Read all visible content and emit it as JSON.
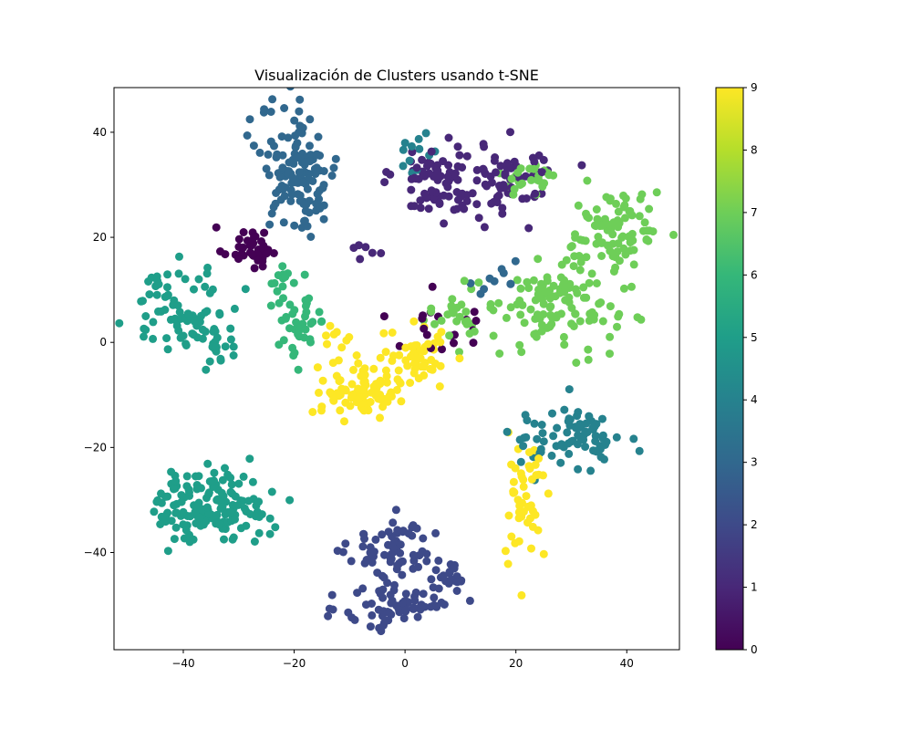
{
  "chart_data": {
    "type": "scatter",
    "title": "Visualización de Clusters usando t-SNE",
    "xlabel": "",
    "ylabel": "",
    "xlim": [
      -52.5,
      49.5
    ],
    "ylim": [
      -58.5,
      48.5
    ],
    "xticks": [
      -40,
      -20,
      0,
      20,
      40
    ],
    "yticks": [
      -40,
      -20,
      0,
      20,
      40
    ],
    "grid": false,
    "colormap": "viridis",
    "colorbar": {
      "label": "",
      "range": [
        0,
        9
      ],
      "ticks": [
        0,
        1,
        2,
        3,
        4,
        5,
        6,
        7,
        8,
        9
      ]
    },
    "palette": [
      "#440154",
      "#482878",
      "#3e4a89",
      "#31688e",
      "#26828e",
      "#1f9e89",
      "#35b779",
      "#6ece58",
      "#b5de2b",
      "#fde725"
    ],
    "clusters": [
      {
        "label": 0,
        "center": [
          -28,
          18
        ],
        "spread": [
          2.5,
          2.0
        ],
        "count": 40
      },
      {
        "label": 0,
        "center": [
          5,
          3
        ],
        "spread": [
          4.0,
          3.0
        ],
        "count": 20
      },
      {
        "label": 1,
        "center": [
          6,
          31
        ],
        "spread": [
          4.0,
          4.0
        ],
        "count": 80
      },
      {
        "label": 1,
        "center": [
          19,
          31
        ],
        "spread": [
          4.0,
          3.5
        ],
        "count": 60
      },
      {
        "label": 1,
        "center": [
          -7,
          18
        ],
        "spread": [
          1.5,
          1.0
        ],
        "count": 6
      },
      {
        "label": 2,
        "center": [
          -1,
          -40
        ],
        "spread": [
          4.5,
          3.0
        ],
        "count": 70
      },
      {
        "label": 2,
        "center": [
          -1,
          -50
        ],
        "spread": [
          5.0,
          2.5
        ],
        "count": 70
      },
      {
        "label": 2,
        "center": [
          8,
          -46
        ],
        "spread": [
          2.0,
          2.0
        ],
        "count": 15
      },
      {
        "label": 3,
        "center": [
          -19,
          33
        ],
        "spread": [
          3.5,
          6.0
        ],
        "count": 130
      },
      {
        "label": 3,
        "center": [
          16,
          12
        ],
        "spread": [
          3.0,
          2.0
        ],
        "count": 10
      },
      {
        "label": 4,
        "center": [
          32,
          -18
        ],
        "spread": [
          3.5,
          3.0
        ],
        "count": 60
      },
      {
        "label": 4,
        "center": [
          24,
          -18
        ],
        "spread": [
          3.0,
          2.5
        ],
        "count": 20
      },
      {
        "label": 4,
        "center": [
          2,
          36
        ],
        "spread": [
          2.0,
          2.0
        ],
        "count": 12
      },
      {
        "label": 5,
        "center": [
          -35,
          -31
        ],
        "spread": [
          5.0,
          3.5
        ],
        "count": 150
      },
      {
        "label": 5,
        "center": [
          -40,
          6
        ],
        "spread": [
          5.0,
          4.0
        ],
        "count": 80
      },
      {
        "label": 5,
        "center": [
          -34,
          -1
        ],
        "spread": [
          2.0,
          1.5
        ],
        "count": 15
      },
      {
        "label": 6,
        "center": [
          -19,
          3
        ],
        "spread": [
          2.5,
          3.5
        ],
        "count": 40
      },
      {
        "label": 6,
        "center": [
          -22,
          12
        ],
        "spread": [
          1.5,
          2.0
        ],
        "count": 12
      },
      {
        "label": 7,
        "center": [
          38,
          21
        ],
        "spread": [
          4.0,
          4.0
        ],
        "count": 90
      },
      {
        "label": 7,
        "center": [
          28,
          7
        ],
        "spread": [
          5.0,
          4.0
        ],
        "count": 110
      },
      {
        "label": 7,
        "center": [
          10,
          5
        ],
        "spread": [
          3.0,
          3.0
        ],
        "count": 30
      },
      {
        "label": 7,
        "center": [
          22,
          31
        ],
        "spread": [
          3.0,
          2.0
        ],
        "count": 25
      },
      {
        "label": 9,
        "center": [
          -8,
          -9
        ],
        "spread": [
          3.5,
          2.5
        ],
        "count": 90
      },
      {
        "label": 9,
        "center": [
          2,
          -3
        ],
        "spread": [
          3.0,
          3.0
        ],
        "count": 50
      },
      {
        "label": 9,
        "center": [
          22,
          -30
        ],
        "spread": [
          2.0,
          6.0
        ],
        "count": 50
      },
      {
        "label": 9,
        "center": [
          -13,
          0
        ],
        "spread": [
          1.5,
          1.0
        ],
        "count": 8
      }
    ]
  }
}
